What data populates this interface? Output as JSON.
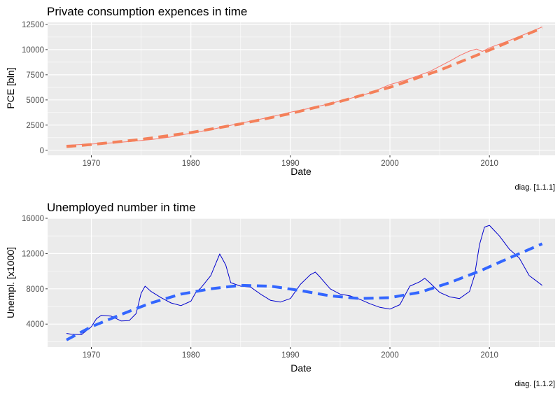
{
  "chart_data": [
    {
      "type": "line",
      "title": "Private consumption expences in time",
      "xlabel": "Date",
      "ylabel": "PCE [bln]",
      "caption": "diag. [1.1.1]",
      "xlim": [
        1965.6,
        2016.6
      ],
      "ylim": [
        -500,
        12700
      ],
      "xticks": [
        1970,
        1980,
        1990,
        2000,
        2010
      ],
      "yticks": [
        0,
        2500,
        5000,
        7500,
        10000,
        12500
      ],
      "ytick_labels": [
        "0",
        "2500",
        "5000",
        "7500",
        "10000",
        "12500"
      ],
      "grid": true,
      "legend": "none",
      "colors": {
        "observed": "#f8766d",
        "smooth": "#f4805a",
        "panel": "#ebebeb",
        "grid": "#ffffff"
      },
      "series": [
        {
          "style": "solid",
          "x": [
            1967.5,
            1970,
            1972,
            1974,
            1976,
            1978,
            1980,
            1982,
            1984,
            1986,
            1988,
            1990,
            1992,
            1994,
            1996,
            1998,
            2000,
            2002,
            2004,
            2006,
            2007,
            2008,
            2008.7,
            2009.3,
            2010,
            2012,
            2014,
            2015.3
          ],
          "y": [
            507,
            620,
            740,
            880,
            1060,
            1330,
            1700,
            2050,
            2480,
            2900,
            3300,
            3780,
            4180,
            4640,
            5150,
            5690,
            6520,
            7110,
            7820,
            8850,
            9410,
            9850,
            10050,
            9820,
            10180,
            10900,
            11700,
            12250
          ]
        },
        {
          "style": "dashed",
          "x": [
            1967.5,
            1970,
            1975,
            1980,
            1985,
            1990,
            1995,
            2000,
            2005,
            2010,
            2015.3
          ],
          "y": [
            370,
            570,
            1080,
            1760,
            2620,
            3650,
            4850,
            6250,
            7950,
            9950,
            12150
          ]
        }
      ]
    },
    {
      "type": "line",
      "title": "Unemployed number in time",
      "xlabel": "Date",
      "ylabel": "Unempl. [x1000]",
      "caption": "diag. [1.1.2]",
      "xlim": [
        1965.6,
        2016.6
      ],
      "ylim": [
        1400,
        16000
      ],
      "xticks": [
        1970,
        1980,
        1990,
        2000,
        2010
      ],
      "yticks": [
        4000,
        8000,
        12000,
        16000
      ],
      "ytick_labels": [
        "4000",
        "8000",
        "12000",
        "16000"
      ],
      "grid": true,
      "legend": "none",
      "colors": {
        "observed": "#0000cd",
        "smooth": "#3366ff",
        "panel": "#ebebeb",
        "grid": "#ffffff"
      },
      "series": [
        {
          "style": "solid",
          "x": [
            1967.5,
            1968,
            1969,
            1970,
            1970.5,
            1971,
            1972,
            1973,
            1973.8,
            1974.5,
            1975,
            1975.4,
            1976,
            1977,
            1978,
            1979,
            1980,
            1980.5,
            1981,
            1982,
            1982.9,
            1983.5,
            1984,
            1985,
            1986,
            1987,
            1988,
            1989,
            1990,
            1991,
            1992,
            1992.5,
            1993,
            1994,
            1995,
            1996,
            1997,
            1998,
            1999,
            2000,
            2001,
            2002,
            2003,
            2003.5,
            2004,
            2005,
            2006,
            2007,
            2008,
            2008.5,
            2009,
            2009.5,
            2010,
            2010.5,
            2011,
            2012,
            2013,
            2014,
            2015.3
          ],
          "y": [
            2950,
            2850,
            2800,
            3700,
            4600,
            5000,
            4900,
            4350,
            4400,
            5200,
            7500,
            8300,
            7700,
            7000,
            6400,
            6100,
            6600,
            7600,
            8100,
            9500,
            11950,
            10700,
            8700,
            8300,
            8200,
            7400,
            6700,
            6500,
            6900,
            8500,
            9600,
            9900,
            9300,
            8000,
            7400,
            7200,
            6800,
            6300,
            5900,
            5700,
            6200,
            8300,
            8800,
            9200,
            8700,
            7600,
            7100,
            6900,
            7700,
            9500,
            13000,
            15000,
            15200,
            14600,
            14000,
            12500,
            11500,
            9500,
            8400
          ]
        },
        {
          "style": "dashed",
          "x": [
            1967.5,
            1970,
            1973,
            1976,
            1979,
            1982,
            1985,
            1988,
            1991,
            1994,
            1997,
            2000,
            2003,
            2006,
            2009,
            2012,
            2015.3
          ],
          "y": [
            2200,
            3700,
            5100,
            6400,
            7400,
            8000,
            8400,
            8300,
            7800,
            7200,
            6900,
            7000,
            7600,
            8700,
            10000,
            11500,
            13100
          ]
        }
      ]
    }
  ]
}
